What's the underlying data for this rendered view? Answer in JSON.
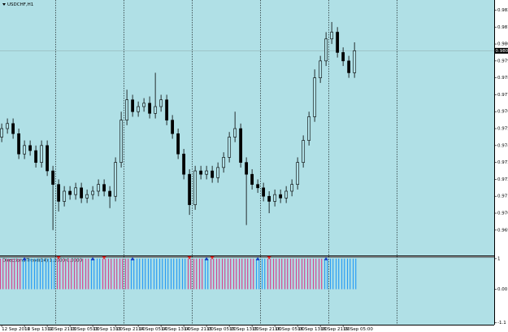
{
  "chart_data": [
    {
      "type": "candlestick",
      "title": "USDCHF,H1",
      "x": [
        0,
        2,
        4,
        6,
        8,
        10,
        12,
        14,
        16,
        18,
        20,
        22,
        24,
        26,
        28,
        30,
        32,
        34,
        36,
        38,
        40,
        42,
        44,
        46,
        48,
        50,
        52,
        54,
        56,
        58,
        60,
        62,
        64,
        66,
        68,
        70,
        72,
        74,
        76,
        78,
        80,
        82,
        84,
        86,
        88,
        90,
        92,
        94,
        96,
        98,
        100,
        102,
        104,
        106,
        108,
        110,
        112,
        114,
        116,
        118,
        120,
        122,
        124
      ],
      "open": [
        0.975,
        0.9755,
        0.9758,
        0.9752,
        0.974,
        0.9745,
        0.9742,
        0.9735,
        0.9745,
        0.973,
        0.9722,
        0.9712,
        0.9718,
        0.9716,
        0.972,
        0.9714,
        0.9716,
        0.9718,
        0.9722,
        0.9718,
        0.9715,
        0.9735,
        0.976,
        0.9772,
        0.9765,
        0.9768,
        0.977,
        0.9764,
        0.9768,
        0.9772,
        0.976,
        0.9752,
        0.974,
        0.9728,
        0.971,
        0.973,
        0.9728,
        0.973,
        0.9726,
        0.9732,
        0.9738,
        0.975,
        0.9755,
        0.9735,
        0.9728,
        0.9722,
        0.972,
        0.9715,
        0.9712,
        0.9716,
        0.9714,
        0.9718,
        0.9722,
        0.9735,
        0.9748,
        0.9762,
        0.9785,
        0.9795,
        0.9808,
        0.9812,
        0.98,
        0.9795,
        0.9788
      ],
      "high": [
        0.9758,
        0.9761,
        0.9761,
        0.9755,
        0.9748,
        0.9748,
        0.9745,
        0.9748,
        0.9748,
        0.9733,
        0.9725,
        0.9721,
        0.9721,
        0.9723,
        0.9723,
        0.9719,
        0.9721,
        0.9725,
        0.9725,
        0.9721,
        0.9738,
        0.9765,
        0.9778,
        0.9775,
        0.9771,
        0.9773,
        0.9774,
        0.9788,
        0.9775,
        0.9775,
        0.9763,
        0.9755,
        0.9743,
        0.9731,
        0.9733,
        0.9733,
        0.9733,
        0.9733,
        0.9735,
        0.9741,
        0.9753,
        0.9765,
        0.9758,
        0.9738,
        0.9731,
        0.9725,
        0.9723,
        0.9718,
        0.9719,
        0.9719,
        0.9721,
        0.9725,
        0.9738,
        0.9751,
        0.9765,
        0.979,
        0.9798,
        0.9812,
        0.9818,
        0.9815,
        0.9803,
        0.9798,
        0.9806
      ],
      "low": [
        0.9747,
        0.9752,
        0.9749,
        0.9737,
        0.9737,
        0.9739,
        0.9732,
        0.9732,
        0.9727,
        0.9695,
        0.9706,
        0.9709,
        0.9713,
        0.9713,
        0.9711,
        0.9711,
        0.9713,
        0.9715,
        0.9715,
        0.9708,
        0.9712,
        0.9732,
        0.9757,
        0.9762,
        0.9762,
        0.9765,
        0.9761,
        0.9761,
        0.9765,
        0.9757,
        0.9749,
        0.9737,
        0.9725,
        0.9704,
        0.9707,
        0.9725,
        0.9725,
        0.9723,
        0.9723,
        0.9729,
        0.9735,
        0.9747,
        0.9732,
        0.9698,
        0.9719,
        0.9717,
        0.9712,
        0.9705,
        0.9709,
        0.9711,
        0.9711,
        0.9715,
        0.9719,
        0.9732,
        0.9745,
        0.9759,
        0.9782,
        0.9792,
        0.9805,
        0.9797,
        0.9792,
        0.9785,
        0.9785
      ],
      "close": [
        0.9755,
        0.9758,
        0.9752,
        0.974,
        0.9745,
        0.9742,
        0.9735,
        0.9745,
        0.973,
        0.9722,
        0.9712,
        0.9718,
        0.9716,
        0.972,
        0.9714,
        0.9716,
        0.9718,
        0.9722,
        0.9718,
        0.9715,
        0.9735,
        0.976,
        0.9772,
        0.9765,
        0.9768,
        0.977,
        0.9764,
        0.9768,
        0.9772,
        0.976,
        0.9752,
        0.974,
        0.9728,
        0.971,
        0.973,
        0.9728,
        0.973,
        0.9726,
        0.9732,
        0.9738,
        0.975,
        0.9755,
        0.9735,
        0.9728,
        0.9722,
        0.972,
        0.9715,
        0.9712,
        0.9716,
        0.9714,
        0.9718,
        0.9722,
        0.9735,
        0.9748,
        0.9762,
        0.9785,
        0.9795,
        0.9808,
        0.9812,
        0.98,
        0.9795,
        0.9788,
        0.9801
      ],
      "xlim": [
        -0.6,
        173.1
      ],
      "ylim": [
        0.968,
        0.9831
      ],
      "yticks": [
        0.9695,
        0.9705,
        0.9715,
        0.9725,
        0.9735,
        0.9745,
        0.9755,
        0.9765,
        0.9775,
        0.9785,
        0.9795,
        0.9805,
        0.9815,
        0.9825
      ],
      "xticks": [
        {
          "value": 0,
          "label": "12 Sep 2016"
        },
        {
          "value": 8,
          "label": "12 Sep 13:00"
        },
        {
          "value": 16,
          "label": "12 Sep 21:00"
        },
        {
          "value": 24,
          "label": "13 Sep 05:00"
        },
        {
          "value": 32,
          "label": "13 Sep 13:00"
        },
        {
          "value": 40,
          "label": "13 Sep 21:00"
        },
        {
          "value": 48,
          "label": "14 Sep 05:00"
        },
        {
          "value": 56,
          "label": "14 Sep 13:00"
        },
        {
          "value": 64,
          "label": "14 Sep 21:00"
        },
        {
          "value": 72,
          "label": "15 Sep 05:00"
        },
        {
          "value": 80,
          "label": "15 Sep 13:00"
        },
        {
          "value": 88,
          "label": "15 Sep 21:00"
        },
        {
          "value": 96,
          "label": "16 Sep 05:00"
        },
        {
          "value": 104,
          "label": "16 Sep 13:00"
        },
        {
          "value": 112,
          "label": "16 Sep 21:00"
        },
        {
          "value": 120,
          "label": "19 Sep 05:00"
        }
      ],
      "day_separators": [
        19,
        43,
        67,
        91,
        115,
        139
      ],
      "current_price": {
        "value": 0.9801,
        "label": "0.9801"
      },
      "color": "#000000",
      "background": "#b0e0e6"
    },
    {
      "type": "histogram",
      "title": "DirectionalTrend(14) 1.0000 0.0000",
      "series": [
        {
          "color": "#2a9df4",
          "values": [
            null,
            null,
            null,
            null,
            1,
            1,
            1,
            1,
            1,
            1,
            null,
            null,
            null,
            null,
            null,
            null,
            1,
            1,
            null,
            null,
            null,
            null,
            null,
            1,
            1,
            1,
            1,
            1,
            1,
            1,
            1,
            1,
            1,
            null,
            null,
            null,
            1,
            null,
            null,
            null,
            null,
            null,
            null,
            null,
            null,
            1,
            1,
            null,
            null,
            null,
            null,
            null,
            null,
            null,
            null,
            null,
            null,
            1,
            1,
            1,
            1,
            1,
            1
          ]
        },
        {
          "color": "#d4478f",
          "values": [
            1,
            1,
            1,
            1,
            null,
            null,
            null,
            null,
            null,
            null,
            1,
            1,
            1,
            1,
            1,
            1,
            null,
            null,
            1,
            1,
            1,
            1,
            1,
            null,
            null,
            null,
            null,
            null,
            null,
            null,
            null,
            null,
            null,
            1,
            1,
            1,
            null,
            1,
            1,
            1,
            1,
            1,
            1,
            1,
            1,
            null,
            null,
            1,
            1,
            1,
            1,
            1,
            1,
            1,
            1,
            1,
            1,
            null,
            null,
            null,
            null,
            null,
            null
          ]
        }
      ],
      "ylim": [
        -1.16,
        1.05
      ],
      "yticks": [
        1,
        {
          "value": 0,
          "label": "0.00"
        },
        -1.1
      ]
    }
  ]
}
